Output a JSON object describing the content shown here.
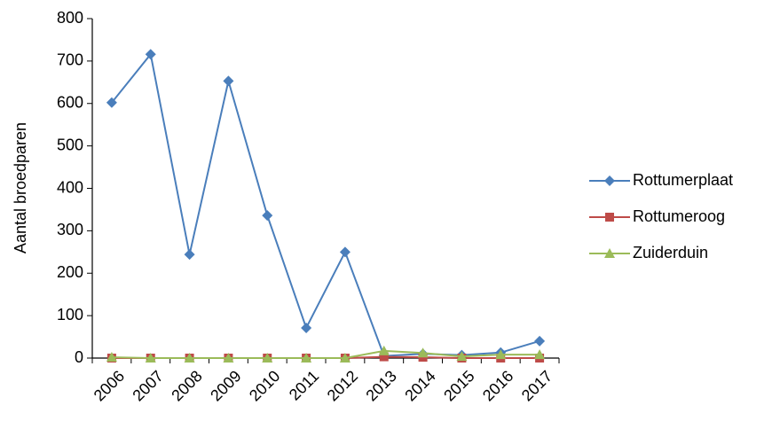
{
  "chart_data": {
    "type": "line",
    "y_label": "Aantal broedparen",
    "categories": [
      "2006",
      "2007",
      "2008",
      "2009",
      "2010",
      "2011",
      "2012",
      "2013",
      "2014",
      "2015",
      "2016",
      "2017"
    ],
    "series": [
      {
        "name": "Rottumerplaat",
        "color": "#4a7ebb",
        "marker": "diamond",
        "values": [
          602,
          716,
          244,
          653,
          336,
          71,
          250,
          5,
          10,
          7,
          13,
          40
        ]
      },
      {
        "name": "Rottumeroog",
        "color": "#be4b48",
        "marker": "square",
        "values": [
          0,
          0,
          0,
          0,
          0,
          0,
          0,
          3,
          2,
          0,
          0,
          0
        ]
      },
      {
        "name": "Zuiderduin",
        "color": "#9bbb59",
        "marker": "triangle",
        "values": [
          2,
          0,
          0,
          0,
          0,
          0,
          0,
          17,
          12,
          4,
          8,
          8
        ]
      }
    ],
    "ylim": [
      0,
      800
    ],
    "yticks": [
      0,
      100,
      200,
      300,
      400,
      500,
      600,
      700,
      800
    ],
    "grid": false,
    "legend": "right"
  }
}
